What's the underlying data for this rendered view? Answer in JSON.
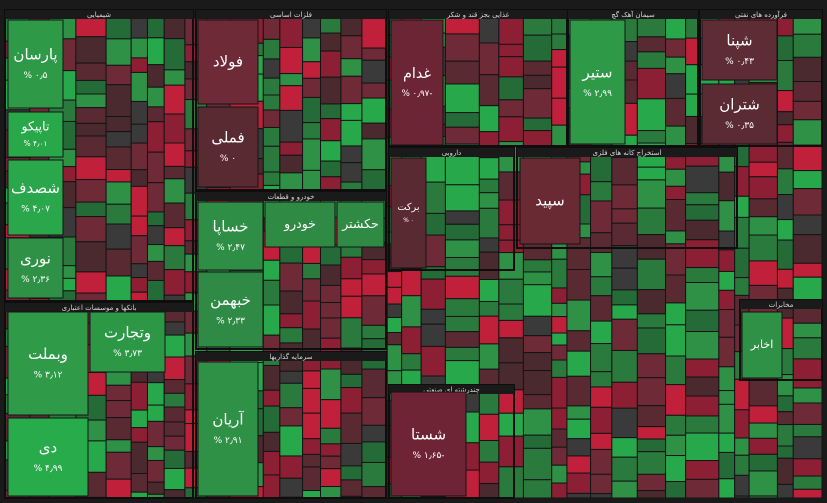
{
  "chart_data": {
    "type": "treemap",
    "sectors": [
      {
        "name": "شیمیایی",
        "stocks": [
          {
            "name": "پارسان",
            "value": 0.5,
            "value_label": "۰٫۵ %",
            "color": "#2e9a48"
          },
          {
            "name": "تاپیکو",
            "value": 4.01,
            "value_label": "۴٫۰۱ %",
            "color": "#29a84a"
          },
          {
            "name": "شصدف",
            "value": 4.07,
            "value_label": "۴٫۰۷ %",
            "color": "#2aa64b"
          },
          {
            "name": "نوری",
            "value": 2.36,
            "value_label": "۲٫۳۶ %",
            "color": "#2f9146"
          }
        ]
      },
      {
        "name": "بانکها و موسسات اعتباری",
        "stocks": [
          {
            "name": "وبملت",
            "value": 3.12,
            "value_label": "۳٫۱۲ %",
            "color": "#2f9b48"
          },
          {
            "name": "دی",
            "value": 4.99,
            "value_label": "۴٫۹۹ %",
            "color": "#27ab4b"
          },
          {
            "name": "وتجارت",
            "value": 3.73,
            "value_label": "۳٫۷۳ %",
            "color": "#2c9846"
          }
        ]
      },
      {
        "name": "فلزات اساسی",
        "stocks": [
          {
            "name": "فولاد",
            "color": "#6e2a36"
          },
          {
            "name": "فملی",
            "value": 0,
            "value_label": "۰ %",
            "color": "#5a2a32"
          }
        ]
      },
      {
        "name": "خودرو و قطعات",
        "stocks": [
          {
            "name": "خساپا",
            "value": 2.47,
            "value_label": "۲٫۴۷ %",
            "color": "#2f8e45"
          },
          {
            "name": "خبهمن",
            "value": 2.33,
            "value_label": "۲٫۳۳ %",
            "color": "#2e8a44"
          },
          {
            "name": "خودرو",
            "color": "#2f8a44"
          },
          {
            "name": "حکشتر",
            "color": "#2f8a44"
          }
        ]
      },
      {
        "name": "سرمایه گذاریها",
        "stocks": [
          {
            "name": "آریان",
            "value": 2.91,
            "value_label": "۲٫۹۱ %",
            "color": "#2e9146"
          }
        ]
      },
      {
        "name": "غذایی بجز قند و شکر",
        "stocks": [
          {
            "name": "غدام",
            "value": -0.97,
            "value_label": "-۰٫۹۷ %",
            "color": "#6b2535"
          }
        ]
      },
      {
        "name": "دارویی",
        "stocks": [
          {
            "name": "برکت",
            "value": 0,
            "value_label": "۰ %",
            "color": "#5a2a32"
          }
        ]
      },
      {
        "name": "استخراج کانه های فلزی",
        "stocks": [
          {
            "name": "سپید",
            "color": "#6a2a34"
          }
        ]
      },
      {
        "name": "سیمان آهک گچ",
        "stocks": [
          {
            "name": "ستیر",
            "value": 2.99,
            "value_label": "۲٫۹۹ %",
            "color": "#2e9a48"
          }
        ]
      },
      {
        "name": "فرآورده های نفتی",
        "stocks": [
          {
            "name": "شپنا",
            "value": 0.43,
            "value_label": "۰٫۴۳ %",
            "color": "#5e2c35"
          },
          {
            "name": "شتران",
            "value": 0.35,
            "value_label": "۰٫۳۵ %",
            "color": "#5a2b33"
          }
        ]
      },
      {
        "name": "چندرشته ای صنعتی",
        "stocks": [
          {
            "name": "شستا",
            "value": -1.65,
            "value_label": "-۱٫۶۵ %",
            "color": "#6e2434"
          }
        ]
      },
      {
        "name": "مخابرات",
        "stocks": [
          {
            "name": "اخابر",
            "color": "#2f9146"
          }
        ]
      }
    ]
  }
}
